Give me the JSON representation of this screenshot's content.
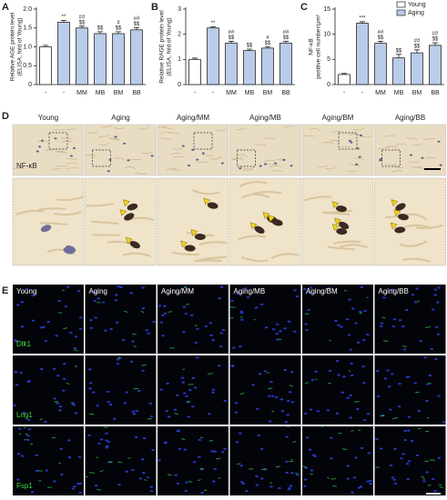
{
  "chart_data": [
    {
      "type": "bar",
      "panel": "A",
      "ylabel": [
        "Relative AGE protein level",
        "(ELISA, fold of Young)"
      ],
      "categories": [
        "-",
        "-",
        "MM",
        "MB",
        "BM",
        "BB"
      ],
      "values": [
        1.0,
        1.65,
        1.5,
        1.35,
        1.35,
        1.45
      ],
      "errors": [
        0.04,
        0.05,
        0.05,
        0.05,
        0.05,
        0.06
      ],
      "colors": [
        "#ffffff",
        "#b9cce9",
        "#b9cce9",
        "#b9cce9",
        "#b9cce9",
        "#b9cce9"
      ],
      "annotations": [
        [],
        [
          "**"
        ],
        [
          "##",
          "$$"
        ],
        [
          "$$"
        ],
        [
          "#",
          "$$"
        ],
        [
          "##",
          "$$"
        ]
      ],
      "ylim": [
        0,
        2
      ],
      "yticks": [
        0,
        0.5,
        {
          "value": 1,
          "label": "1.0"
        },
        1.5,
        {
          "value": 2,
          "label": "2.0"
        }
      ]
    },
    {
      "type": "bar",
      "panel": "B",
      "ylabel": [
        "Relative RAGE protein level",
        "(ELISA, fold of Young)"
      ],
      "categories": [
        "-",
        "-",
        "MM",
        "MB",
        "BM",
        "BB"
      ],
      "values": [
        1.0,
        2.25,
        1.65,
        1.35,
        1.45,
        1.65
      ],
      "errors": [
        0.05,
        0.05,
        0.07,
        0.06,
        0.06,
        0.07
      ],
      "colors": [
        "#ffffff",
        "#b9cce9",
        "#b9cce9",
        "#b9cce9",
        "#b9cce9",
        "#b9cce9"
      ],
      "annotations": [
        [],
        [
          "**"
        ],
        [
          "##",
          "$$"
        ],
        [
          "$$"
        ],
        [
          "#",
          "$$"
        ],
        [
          "##",
          "$$"
        ]
      ],
      "ylim": [
        0,
        3
      ],
      "yticks": [
        0,
        1,
        2,
        3
      ]
    },
    {
      "type": "bar",
      "panel": "C",
      "ylabel": [
        "NF-κB",
        "positive cell number/μm²"
      ],
      "categories": [
        "-",
        "-",
        "MM",
        "MB",
        "BM",
        "BB"
      ],
      "values": [
        2.0,
        12.2,
        8.2,
        5.3,
        6.3,
        7.8
      ],
      "errors": [
        0.2,
        0.3,
        0.4,
        0.7,
        0.6,
        0.5
      ],
      "colors": [
        "#ffffff",
        "#b9cce9",
        "#b9cce9",
        "#b9cce9",
        "#b9cce9",
        "#b9cce9"
      ],
      "annotations": [
        [],
        [
          "***"
        ],
        [
          "##",
          "$$"
        ],
        [
          "$$"
        ],
        [
          "##",
          "$$"
        ],
        [
          "##",
          "$$"
        ]
      ],
      "ylim": [
        0,
        15
      ],
      "yticks": [
        0,
        5,
        10,
        15
      ],
      "legend": {
        "position": "upper right",
        "entries": [
          {
            "name": "Young",
            "color": "#ffffff"
          },
          {
            "name": "Aging",
            "color": "#b9cce9"
          }
        ]
      }
    }
  ],
  "panel_d": {
    "label": "D",
    "columns": [
      "Young",
      "Aging",
      "Aging/MM",
      "Aging/MB",
      "Aging/BM",
      "Aging/BB"
    ],
    "stain": "NF-κB"
  },
  "panel_e": {
    "label": "E",
    "columns": [
      "Young",
      "Aging",
      "Aging/MM",
      "Aging/MB",
      "Aging/BM",
      "Aging/BB"
    ],
    "rows": [
      "Dlk1",
      "Lrig1",
      "Fsp1"
    ]
  }
}
